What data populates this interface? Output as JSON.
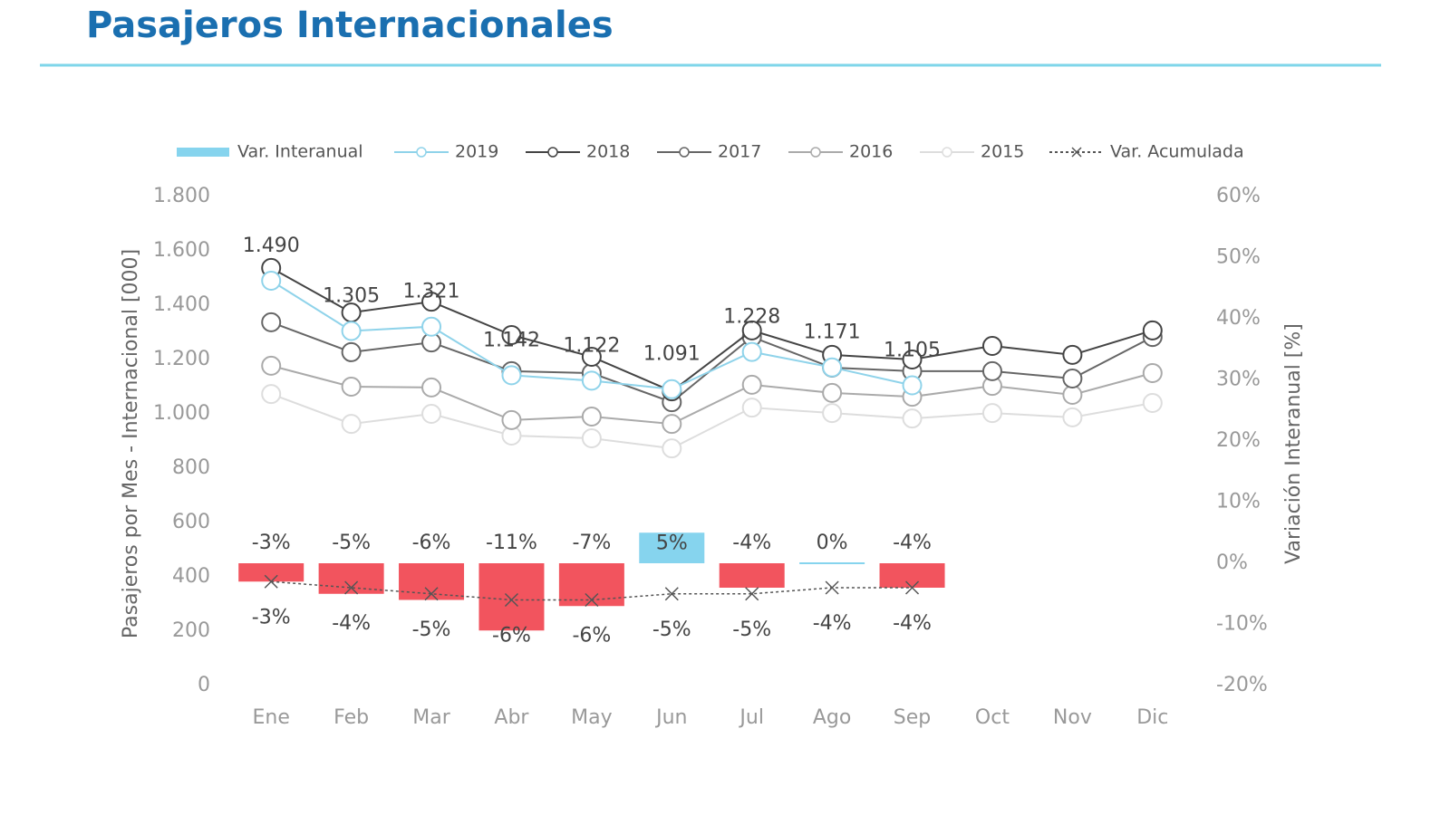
{
  "header": {
    "title": "Pasajeros Internacionales"
  },
  "chart_data": {
    "type": "bar",
    "categories": [
      "Ene",
      "Feb",
      "Mar",
      "Abr",
      "May",
      "Jun",
      "Jul",
      "Ago",
      "Sep",
      "Oct",
      "Nov",
      "Dic"
    ],
    "ylabel": "Pasajeros por Mes - Internacional [000]",
    "y2label": "Variación Interanual [%]",
    "ylim": [
      0,
      1800
    ],
    "yticks": [
      0,
      200,
      400,
      600,
      800,
      {
        "value": 1000,
        "label": "1.000"
      },
      {
        "value": 1200,
        "label": "1.200"
      },
      {
        "value": 1400,
        "label": "1.400"
      },
      {
        "value": 1600,
        "label": "1.600"
      },
      {
        "value": 1800,
        "label": "1.800"
      }
    ],
    "y2lim": [
      -20,
      60
    ],
    "y2ticks": [
      {
        "value": -20,
        "label": "-20%"
      },
      {
        "value": -10,
        "label": "-10%"
      },
      {
        "value": 0,
        "label": "0%"
      },
      {
        "value": 10,
        "label": "10%"
      },
      {
        "value": 20,
        "label": "20%"
      },
      {
        "value": 30,
        "label": "30%"
      },
      {
        "value": 40,
        "label": "40%"
      },
      {
        "value": 50,
        "label": "50%"
      },
      {
        "value": 60,
        "label": "60%"
      }
    ],
    "series": [
      {
        "name": "Var. Interanual",
        "type": "bar",
        "axis": "y2",
        "colors": [
          "#f2545e",
          "#f2545e",
          "#f2545e",
          "#f2545e",
          "#f2545e",
          "#86d4ee",
          "#f2545e",
          "#86d4ee",
          "#f2545e",
          null,
          null,
          null
        ],
        "color": "#86d4ee",
        "values": [
          -3,
          -5,
          -6,
          -11,
          -7,
          5,
          -4,
          0,
          -4,
          null,
          null,
          null
        ],
        "value_labels": [
          "-3%",
          "-5%",
          "-6%",
          "-11%",
          "-7%",
          "5%",
          "-4%",
          "0%",
          "-4%",
          null,
          null,
          null
        ]
      },
      {
        "name": "2019",
        "type": "line",
        "color": "#8fd3ea",
        "values": [
          1490,
          1305,
          1321,
          1142,
          1122,
          1091,
          1228,
          1171,
          1105,
          null,
          null,
          null
        ],
        "value_labels": [
          "1.490",
          "1.305",
          "1.321",
          "1.142",
          "1.122",
          "1.091",
          "1.228",
          "1.171",
          "1.105",
          null,
          null,
          null
        ]
      },
      {
        "name": "2018",
        "type": "line",
        "color": "#444444",
        "values": [
          1537,
          1373,
          1413,
          1290,
          1210,
          1083,
          1307,
          1217,
          1200,
          1250,
          1217,
          1307
        ]
      },
      {
        "name": "2017",
        "type": "line",
        "color": "#666666",
        "values": [
          1337,
          1227,
          1263,
          1157,
          1150,
          1043,
          1283,
          1170,
          1157,
          1157,
          1130,
          1283
        ]
      },
      {
        "name": "2016",
        "type": "line",
        "color": "#aaaaaa",
        "values": [
          1177,
          1100,
          1097,
          977,
          990,
          963,
          1107,
          1077,
          1063,
          1103,
          1070,
          1150
        ]
      },
      {
        "name": "2015",
        "type": "line",
        "color": "#dddddd",
        "values": [
          1073,
          963,
          1000,
          920,
          910,
          873,
          1023,
          1003,
          983,
          1003,
          987,
          1040
        ]
      },
      {
        "name": "Var. Acumulada",
        "type": "cross",
        "axis": "y2",
        "color": "#555555",
        "values": [
          -3,
          -4,
          -5,
          -6,
          -6,
          -5,
          -5,
          -4,
          -4,
          null,
          null,
          null
        ],
        "value_labels": [
          "-3%",
          "-4%",
          "-5%",
          "-6%",
          "-6%",
          "-5%",
          "-5%",
          "-4%",
          "-4%",
          null,
          null,
          null
        ]
      }
    ]
  }
}
